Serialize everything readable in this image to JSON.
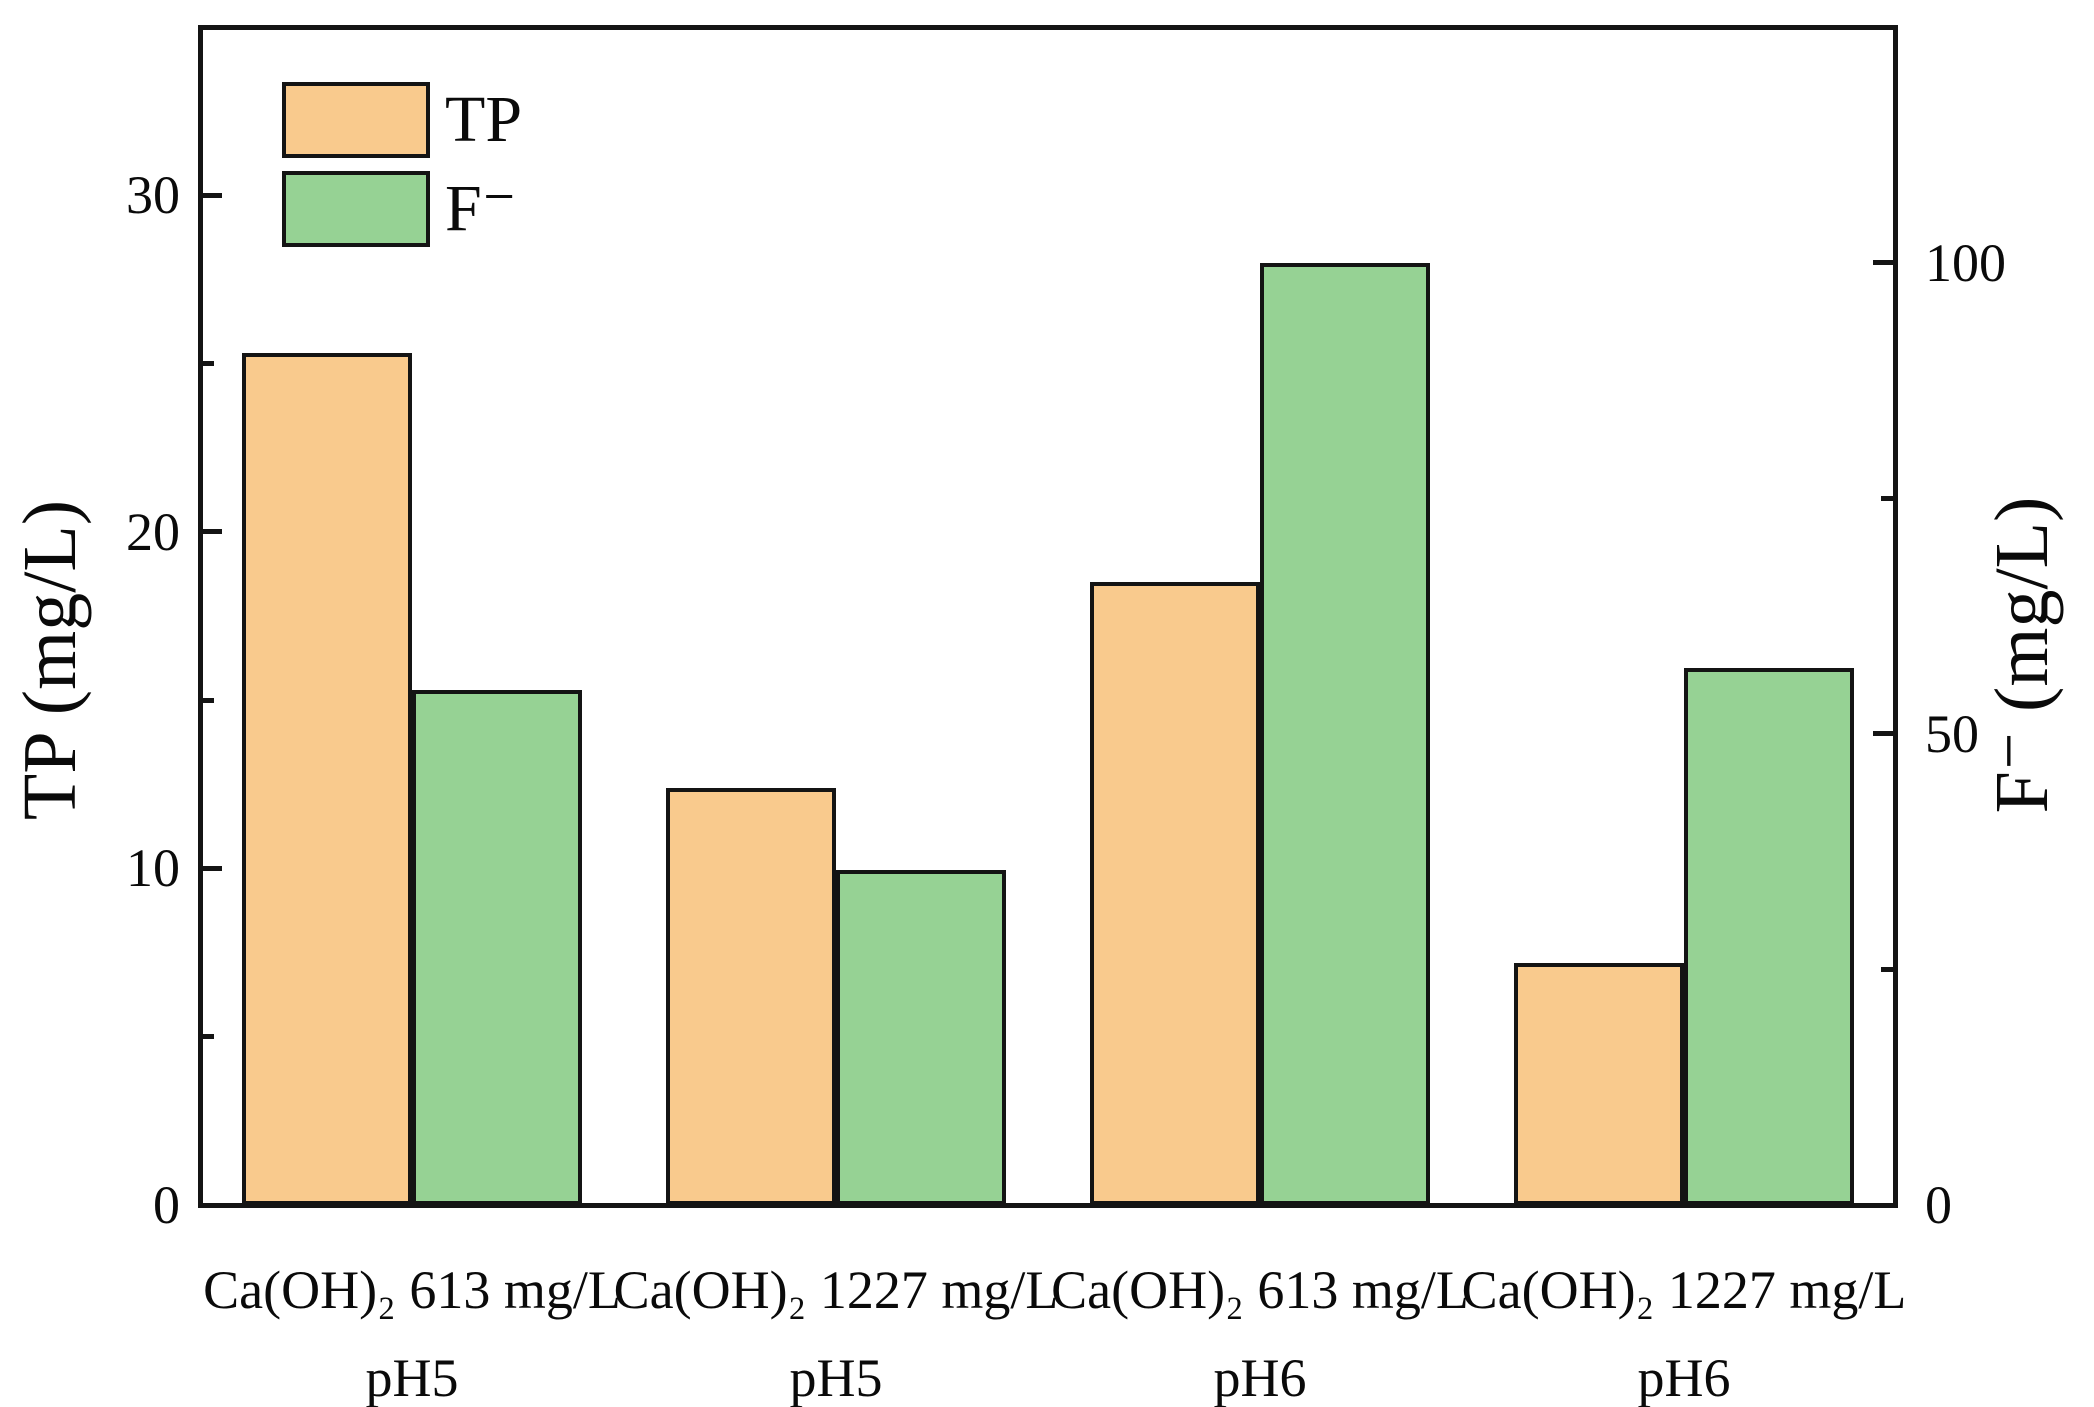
{
  "chart_data": {
    "type": "bar",
    "title": "",
    "categories": [
      {
        "line1": "Ca(OH)₂ 613 mg/L",
        "line2": "pH5"
      },
      {
        "line1": "Ca(OH)₂ 1227 mg/L",
        "line2": "pH5"
      },
      {
        "line1": "Ca(OH)₂ 613 mg/L",
        "line2": "pH6"
      },
      {
        "line1": "Ca(OH)₂ 1227 mg/L",
        "line2": "pH6"
      }
    ],
    "series": [
      {
        "name": "TP",
        "axis": "left",
        "color": "#F9CA8D",
        "values": [
          25.3,
          12.4,
          18.5,
          7.2
        ]
      },
      {
        "name": "F⁻",
        "axis": "right",
        "color": "#96D294",
        "values": [
          54.6,
          35.5,
          100.0,
          57.0
        ]
      }
    ],
    "axes": {
      "left": {
        "label": "TP (mg/L)",
        "min": 0,
        "max": 35,
        "major_ticks": [
          0,
          10,
          20,
          30
        ],
        "minor_ticks": [
          5,
          15,
          25
        ]
      },
      "right": {
        "label": "F⁻  (mg/L)",
        "min": 0,
        "max": 125,
        "major_ticks": [
          0,
          50,
          100
        ],
        "minor_ticks": [
          25,
          75
        ]
      }
    },
    "legend": {
      "position": "top-left-inside",
      "items": [
        {
          "label": "TP"
        },
        {
          "label": "F⁻"
        }
      ]
    },
    "grid": "off"
  }
}
